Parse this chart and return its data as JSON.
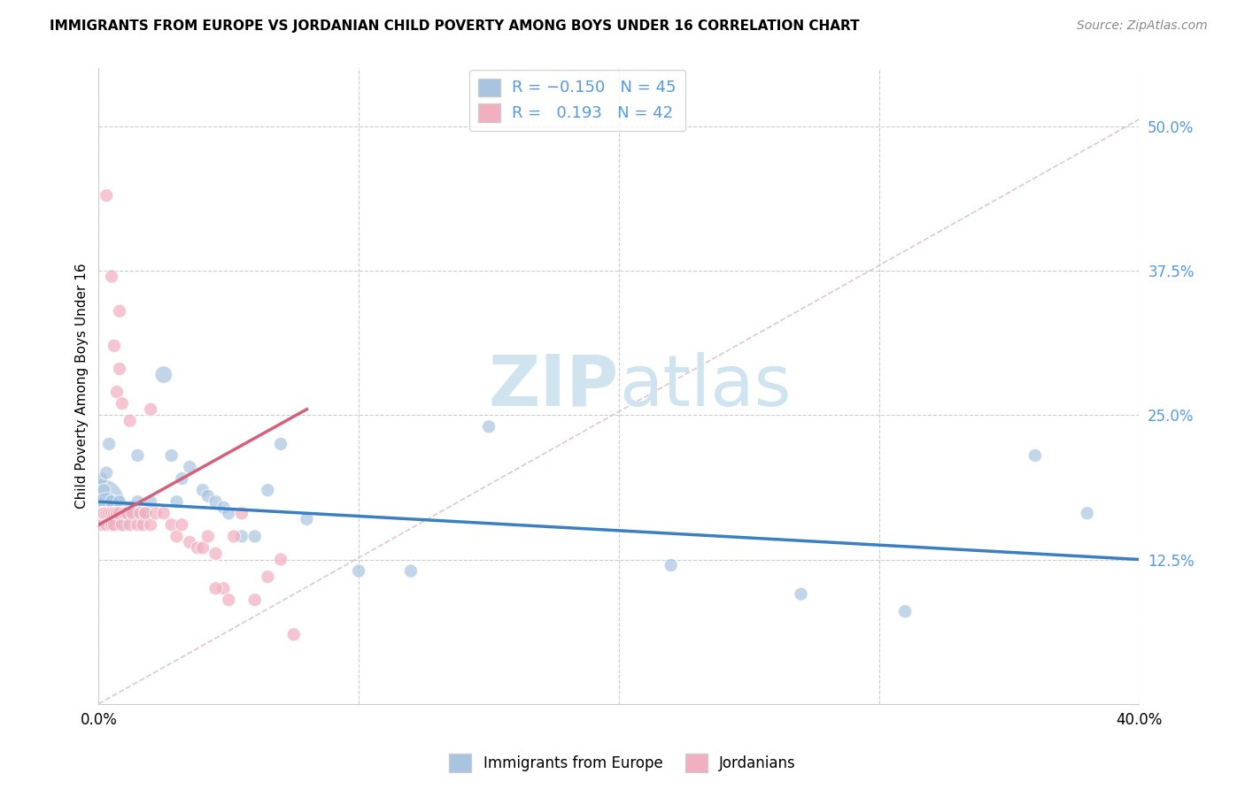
{
  "title": "IMMIGRANTS FROM EUROPE VS JORDANIAN CHILD POVERTY AMONG BOYS UNDER 16 CORRELATION CHART",
  "source": "Source: ZipAtlas.com",
  "ylabel": "Child Poverty Among Boys Under 16",
  "ytick_labels": [
    "50.0%",
    "37.5%",
    "25.0%",
    "12.5%"
  ],
  "ytick_vals": [
    0.5,
    0.375,
    0.25,
    0.125
  ],
  "xtick_labels": [
    "0.0%",
    "",
    "",
    "",
    "40.0%"
  ],
  "xtick_vals": [
    0.0,
    0.1,
    0.2,
    0.3,
    0.4
  ],
  "xmin": 0.0,
  "xmax": 0.4,
  "ymin": 0.0,
  "ymax": 0.55,
  "blue_color": "#a8c4e0",
  "pink_color": "#f2afc0",
  "line_blue": "#3a7fc1",
  "line_pink": "#d4607a",
  "watermark_color": "#d0e4f0",
  "blue_scatter_x": [
    0.001,
    0.001,
    0.002,
    0.002,
    0.003,
    0.003,
    0.004,
    0.005,
    0.005,
    0.006,
    0.007,
    0.008,
    0.008,
    0.009,
    0.01,
    0.01,
    0.012,
    0.013,
    0.015,
    0.015,
    0.018,
    0.02,
    0.025,
    0.028,
    0.03,
    0.032,
    0.035,
    0.04,
    0.042,
    0.045,
    0.048,
    0.05,
    0.055,
    0.06,
    0.065,
    0.07,
    0.08,
    0.1,
    0.12,
    0.15,
    0.22,
    0.27,
    0.31,
    0.36,
    0.38
  ],
  "blue_scatter_y": [
    0.175,
    0.195,
    0.165,
    0.185,
    0.17,
    0.2,
    0.225,
    0.165,
    0.175,
    0.16,
    0.165,
    0.165,
    0.175,
    0.165,
    0.165,
    0.155,
    0.17,
    0.165,
    0.175,
    0.215,
    0.165,
    0.175,
    0.285,
    0.215,
    0.175,
    0.195,
    0.205,
    0.185,
    0.18,
    0.175,
    0.17,
    0.165,
    0.145,
    0.145,
    0.185,
    0.225,
    0.16,
    0.115,
    0.115,
    0.24,
    0.12,
    0.095,
    0.08,
    0.215,
    0.165
  ],
  "blue_scatter_sizes": [
    120,
    120,
    120,
    120,
    120,
    120,
    120,
    120,
    120,
    120,
    120,
    120,
    120,
    120,
    120,
    120,
    120,
    120,
    120,
    120,
    120,
    120,
    200,
    120,
    120,
    120,
    120,
    120,
    120,
    120,
    120,
    120,
    120,
    120,
    120,
    120,
    120,
    120,
    120,
    120,
    120,
    120,
    120,
    120,
    120
  ],
  "blue_big_idx": 0,
  "blue_big_size": 1400,
  "blue_big2_idx": 4,
  "blue_big2_size": 600,
  "pink_scatter_x": [
    0.0005,
    0.001,
    0.001,
    0.0015,
    0.002,
    0.003,
    0.003,
    0.004,
    0.005,
    0.005,
    0.006,
    0.006,
    0.007,
    0.008,
    0.009,
    0.01,
    0.011,
    0.012,
    0.013,
    0.015,
    0.016,
    0.017,
    0.018,
    0.02,
    0.022,
    0.025,
    0.028,
    0.03,
    0.032,
    0.035,
    0.038,
    0.04,
    0.042,
    0.045,
    0.048,
    0.05,
    0.052,
    0.055,
    0.06,
    0.065,
    0.07,
    0.075
  ],
  "pink_scatter_y": [
    0.16,
    0.165,
    0.155,
    0.165,
    0.165,
    0.165,
    0.155,
    0.165,
    0.165,
    0.155,
    0.165,
    0.155,
    0.165,
    0.165,
    0.155,
    0.165,
    0.165,
    0.155,
    0.165,
    0.155,
    0.165,
    0.155,
    0.165,
    0.155,
    0.165,
    0.165,
    0.155,
    0.145,
    0.155,
    0.14,
    0.135,
    0.135,
    0.145,
    0.13,
    0.1,
    0.09,
    0.145,
    0.165,
    0.09,
    0.11,
    0.125,
    0.06
  ],
  "pink_scatter_sizes": [
    120,
    120,
    120,
    120,
    120,
    120,
    120,
    120,
    120,
    120,
    120,
    120,
    120,
    120,
    120,
    120,
    120,
    120,
    120,
    120,
    120,
    120,
    120,
    120,
    120,
    120,
    120,
    120,
    120,
    120,
    120,
    120,
    120,
    120,
    120,
    120,
    120,
    120,
    120,
    120,
    120,
    120
  ],
  "pink_high_x": [
    0.003,
    0.005,
    0.006,
    0.007,
    0.008,
    0.008,
    0.009,
    0.012,
    0.02,
    0.045
  ],
  "pink_high_y": [
    0.44,
    0.37,
    0.31,
    0.27,
    0.34,
    0.29,
    0.26,
    0.245,
    0.255,
    0.1
  ],
  "pink_high_sizes": [
    120,
    120,
    120,
    120,
    120,
    120,
    120,
    120,
    120,
    120
  ],
  "blue_line_x": [
    0.0,
    0.4
  ],
  "blue_line_y": [
    0.175,
    0.125
  ],
  "pink_line_x": [
    0.0,
    0.08
  ],
  "pink_line_y": [
    0.155,
    0.255
  ]
}
